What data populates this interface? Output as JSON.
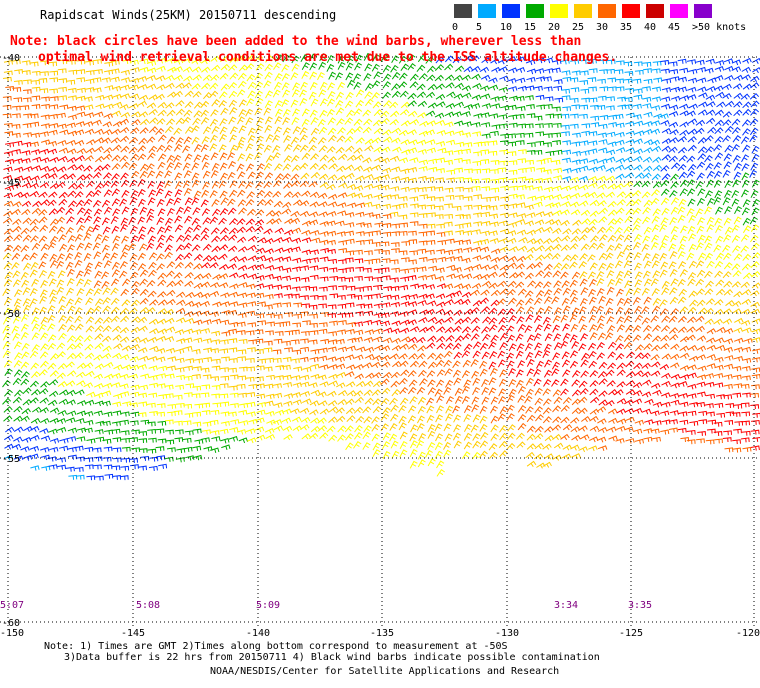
{
  "title": "Rapidscat Winds(25KM) 20150711 descending",
  "note_line1": "Note: black circles have been added to the wind barbs, wherever less than",
  "note_line2": "optimal wind retrieval conditions are met due to the ISS altitude changes.",
  "speed_scale": {
    "labels": [
      "0",
      "5",
      "10",
      "15",
      "20",
      "25",
      "30",
      "35",
      "40",
      "45",
      ">50 knots"
    ],
    "colors": [
      "#444444",
      "#00aaff",
      "#0033ff",
      "#00aa00",
      "#ffff00",
      "#ffcc00",
      "#ff6600",
      "#ff0000",
      "#cc0000",
      "#ff00ff",
      "#8800cc"
    ]
  },
  "lat_labels": [
    "-40",
    "-45",
    "-50",
    "-55",
    "-60"
  ],
  "lon_labels": [
    "-150",
    "-145",
    "-140",
    "-135",
    "-130",
    "-125",
    "-120"
  ],
  "time_labels": [
    "5:07",
    "5:08",
    "5:09",
    "3:34",
    "3:35"
  ],
  "footer_line1": "Note: 1) Times are GMT 2)Times along bottom correspond to measurement at -50S",
  "footer_line2": "3)Data buffer is 22 hrs from 20150711 4) Black wind barbs indicate possible contamination",
  "footer_line3": "NOAA/NESDIS/Center for Satellite Applications and Research"
}
